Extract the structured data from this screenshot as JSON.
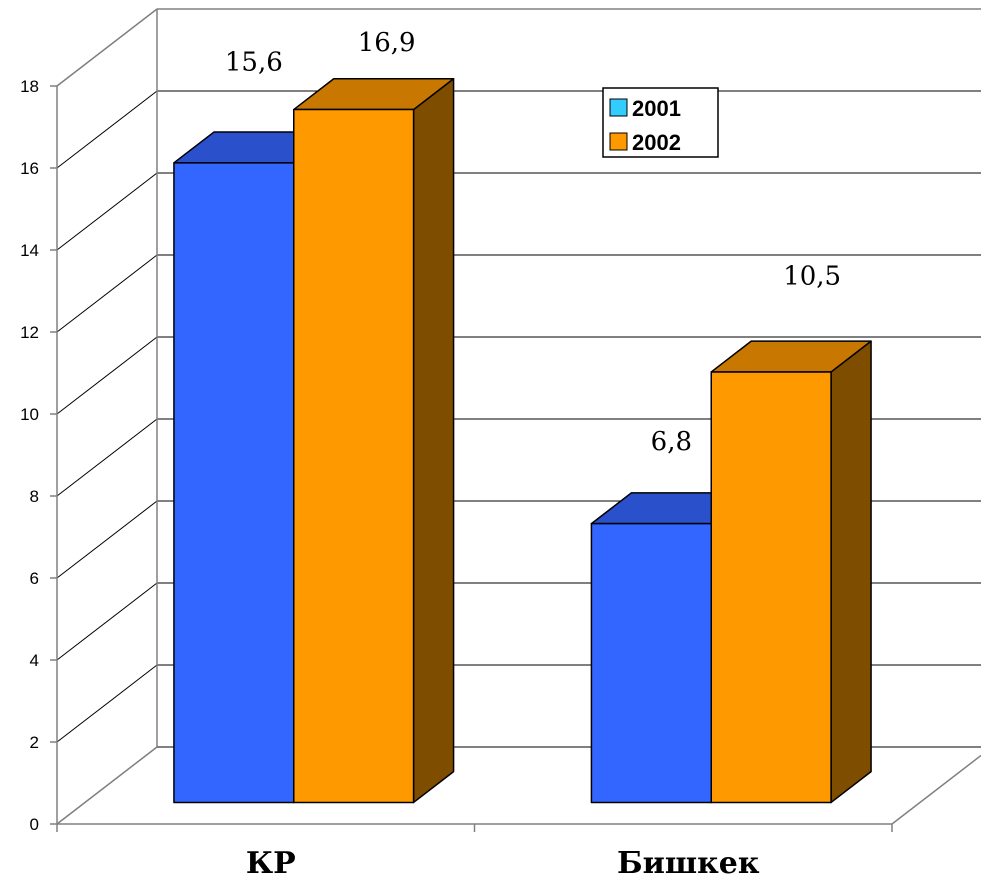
{
  "chart_data": {
    "type": "bar",
    "3d": true,
    "categories": [
      "КР",
      "Бишкек"
    ],
    "series": [
      {
        "name": "2001",
        "values": [
          15.6,
          6.8
        ],
        "data_labels": [
          "15,6",
          "6,8"
        ],
        "colors": {
          "front": "#3366FF",
          "top": "#2A50CC",
          "side": "#1A3399",
          "legend": "#33CCFF"
        }
      },
      {
        "name": "2002",
        "values": [
          16.9,
          10.5
        ],
        "data_labels": [
          "16,9",
          "10,5"
        ],
        "colors": {
          "front": "#FF9900",
          "top": "#C87800",
          "side": "#7F4D00",
          "legend": "#FF9900"
        }
      }
    ],
    "ylim": [
      0,
      18
    ],
    "yticks": [
      0,
      2,
      4,
      6,
      8,
      10,
      12,
      14,
      16,
      18
    ],
    "grid": true,
    "legend": {
      "position": "top-center"
    }
  }
}
